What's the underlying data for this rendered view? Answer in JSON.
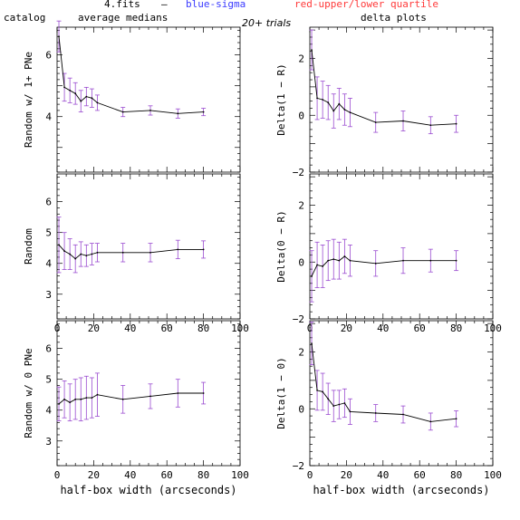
{
  "header": {
    "file": "4.fits",
    "dash": "–",
    "blue_label": "blue-sigma",
    "red_label": "red-upper/lower quartile",
    "catalog": "catalog",
    "avg": "average medians",
    "trials": "20+ trials",
    "delta": "delta plots",
    "blue_color": "#3a3aff",
    "red_color": "#ff3a3a"
  },
  "xlabel": "half-box width (arcseconds)",
  "colors": {
    "line": "#000000",
    "errorbar": "#9a4bd0"
  },
  "chart_data": [
    {
      "type": "line",
      "ylabel": "Random w/ 1+ PNe",
      "xlim": [
        0,
        100
      ],
      "ylim": [
        2.2,
        6.9
      ],
      "xticks": [
        0,
        20,
        40,
        60,
        80,
        100
      ],
      "xtick_labels": [
        "",
        "",
        "",
        "",
        "",
        ""
      ],
      "yticks": [
        4,
        6
      ],
      "ytick_labels": [
        "4",
        "6"
      ],
      "x": [
        1,
        4,
        7,
        10,
        13,
        16,
        19,
        22,
        36,
        51,
        66,
        80
      ],
      "y": [
        6.6,
        4.95,
        4.85,
        4.75,
        4.5,
        4.65,
        4.6,
        4.45,
        4.15,
        4.2,
        4.1,
        4.15
      ],
      "err": [
        0.5,
        0.45,
        0.4,
        0.35,
        0.35,
        0.3,
        0.3,
        0.25,
        0.15,
        0.15,
        0.15,
        0.12
      ]
    },
    {
      "type": "line",
      "ylabel": "Delta(1 − R)",
      "xlim": [
        0,
        100
      ],
      "ylim": [
        -2,
        3.1
      ],
      "xticks": [
        0,
        20,
        40,
        60,
        80,
        100
      ],
      "xtick_labels": [
        "",
        "",
        "",
        "",
        "",
        ""
      ],
      "yticks": [
        -2,
        0,
        2
      ],
      "ytick_labels": [
        "−2",
        "0",
        "2"
      ],
      "x": [
        1,
        4,
        7,
        10,
        13,
        16,
        19,
        22,
        36,
        51,
        66,
        80
      ],
      "y": [
        2.3,
        0.6,
        0.55,
        0.45,
        0.15,
        0.4,
        0.2,
        0.1,
        -0.25,
        -0.2,
        -0.35,
        -0.3
      ],
      "err": [
        0.7,
        0.75,
        0.65,
        0.6,
        0.6,
        0.55,
        0.55,
        0.5,
        0.35,
        0.35,
        0.3,
        0.3
      ]
    },
    {
      "type": "line",
      "ylabel": "Random",
      "xlim": [
        0,
        100
      ],
      "ylim": [
        2.2,
        6.9
      ],
      "xticks": [
        0,
        20,
        40,
        60,
        80,
        100
      ],
      "xtick_labels": [
        "0",
        "20",
        "40",
        "60",
        "80",
        "100"
      ],
      "yticks": [
        3,
        4,
        5,
        6
      ],
      "ytick_labels": [
        "3",
        "4",
        "5",
        "6"
      ],
      "x": [
        1,
        4,
        7,
        10,
        13,
        16,
        19,
        22,
        36,
        51,
        66,
        80
      ],
      "y": [
        4.6,
        4.4,
        4.3,
        4.15,
        4.3,
        4.25,
        4.3,
        4.35,
        4.35,
        4.35,
        4.45,
        4.45
      ],
      "err": [
        0.9,
        0.6,
        0.5,
        0.45,
        0.4,
        0.35,
        0.35,
        0.3,
        0.3,
        0.3,
        0.3,
        0.28
      ]
    },
    {
      "type": "line",
      "ylabel": "Delta(0 − R)",
      "xlim": [
        0,
        100
      ],
      "ylim": [
        -2,
        3.1
      ],
      "xticks": [
        0,
        20,
        40,
        60,
        80,
        100
      ],
      "xtick_labels": [
        "0",
        "20",
        "40",
        "60",
        "80",
        "100"
      ],
      "yticks": [
        -2,
        0,
        2
      ],
      "ytick_labels": [
        "−2",
        "0",
        "2"
      ],
      "x": [
        1,
        4,
        7,
        10,
        13,
        16,
        19,
        22,
        36,
        51,
        66,
        80
      ],
      "y": [
        -0.5,
        -0.1,
        -0.15,
        0.05,
        0.1,
        0.05,
        0.2,
        0.05,
        -0.05,
        0.05,
        0.05,
        0.05
      ],
      "err": [
        0.9,
        0.8,
        0.75,
        0.7,
        0.7,
        0.65,
        0.6,
        0.55,
        0.45,
        0.45,
        0.4,
        0.35
      ]
    },
    {
      "type": "line",
      "ylabel": "Random w/ 0 PNe",
      "xlim": [
        0,
        100
      ],
      "ylim": [
        2.2,
        6.9
      ],
      "xticks": [
        0,
        20,
        40,
        60,
        80,
        100
      ],
      "xtick_labels": [
        "0",
        "20",
        "40",
        "60",
        "80",
        "100"
      ],
      "yticks": [
        3,
        4,
        5,
        6
      ],
      "ytick_labels": [
        "3",
        "4",
        "5",
        "6"
      ],
      "x": [
        1,
        4,
        7,
        10,
        13,
        16,
        19,
        22,
        36,
        51,
        66,
        80
      ],
      "y": [
        4.2,
        4.35,
        4.25,
        4.35,
        4.35,
        4.4,
        4.4,
        4.5,
        4.35,
        4.45,
        4.55,
        4.55
      ],
      "err": [
        0.55,
        0.6,
        0.6,
        0.65,
        0.7,
        0.7,
        0.65,
        0.7,
        0.45,
        0.4,
        0.45,
        0.35
      ]
    },
    {
      "type": "line",
      "ylabel": "Delta(1 − 0)",
      "xlim": [
        0,
        100
      ],
      "ylim": [
        -2,
        3.1
      ],
      "xticks": [
        0,
        20,
        40,
        60,
        80,
        100
      ],
      "xtick_labels": [
        "0",
        "20",
        "40",
        "60",
        "80",
        "100"
      ],
      "yticks": [
        -2,
        0,
        2
      ],
      "ytick_labels": [
        "−2",
        "0",
        "2"
      ],
      "x": [
        1,
        4,
        7,
        10,
        13,
        16,
        19,
        22,
        36,
        51,
        66,
        80
      ],
      "y": [
        2.3,
        0.65,
        0.6,
        0.35,
        0.1,
        0.15,
        0.2,
        -0.1,
        -0.15,
        -0.2,
        -0.45,
        -0.35
      ],
      "err": [
        0.75,
        0.7,
        0.65,
        0.55,
        0.55,
        0.5,
        0.5,
        0.45,
        0.3,
        0.3,
        0.3,
        0.28
      ]
    }
  ]
}
